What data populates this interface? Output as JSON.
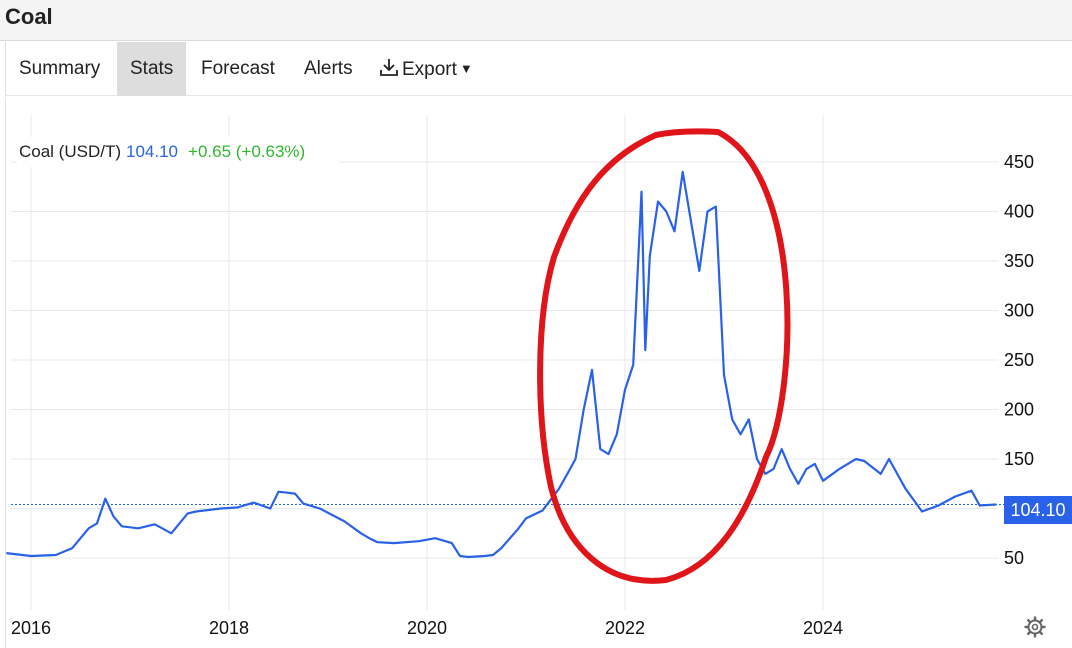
{
  "page": {
    "title": "Coal",
    "tabs": [
      {
        "label": "Summary"
      },
      {
        "label": "Stats"
      },
      {
        "label": "Forecast"
      },
      {
        "label": "Alerts"
      },
      {
        "label": "Export"
      }
    ]
  },
  "chart_data": {
    "type": "line",
    "legend": {
      "series_name": "Coal (USD/T)",
      "last_value": "104.10",
      "change": "+0.65 (+0.63%)"
    },
    "last_value_label": "104.10",
    "x_ticks": [
      "2016",
      "2018",
      "2020",
      "2022",
      "2024"
    ],
    "y_ticks": [
      50,
      100,
      150,
      200,
      250,
      300,
      350,
      400,
      450
    ],
    "y_tick_labels_shown": [
      "50",
      "150",
      "200",
      "250",
      "300",
      "350",
      "400",
      "450"
    ],
    "ylim": [
      0,
      500
    ],
    "grid": true,
    "line_color": "#2962e8",
    "current_line_color": "#2962e8",
    "change_color": "#2fb82f",
    "annotation_color": "#e0151a",
    "series": [
      {
        "name": "Coal (USD/T)",
        "x": [
          "2015-10",
          "2016-01",
          "2016-04",
          "2016-06",
          "2016-08",
          "2016-09",
          "2016-10",
          "2016-11",
          "2016-12",
          "2017-02",
          "2017-04",
          "2017-06",
          "2017-08",
          "2017-09",
          "2017-12",
          "2018-02",
          "2018-04",
          "2018-06",
          "2018-07",
          "2018-09",
          "2018-10",
          "2018-12",
          "2019-03",
          "2019-05",
          "2019-06",
          "2019-07",
          "2019-09",
          "2019-12",
          "2020-02",
          "2020-04",
          "2020-05",
          "2020-06",
          "2020-08",
          "2020-09",
          "2020-10",
          "2020-12",
          "2021-01",
          "2021-03",
          "2021-05",
          "2021-06",
          "2021-07",
          "2021-08",
          "2021-09",
          "2021-10",
          "2021-11",
          "2021-12",
          "2022-01",
          "2022-02",
          "2022-03",
          "2022-03-15",
          "2022-04",
          "2022-05",
          "2022-06",
          "2022-07",
          "2022-08",
          "2022-09",
          "2022-10",
          "2022-11",
          "2022-12",
          "2023-01",
          "2023-02",
          "2023-03",
          "2023-04",
          "2023-05",
          "2023-06",
          "2023-07",
          "2023-08",
          "2023-09",
          "2023-10",
          "2023-11",
          "2023-12",
          "2024-01",
          "2024-03",
          "2024-05",
          "2024-06",
          "2024-08",
          "2024-09",
          "2024-11",
          "2025-01",
          "2025-03",
          "2025-05",
          "2025-07",
          "2025-08",
          "2025-10"
        ],
        "y": [
          55,
          52,
          53,
          60,
          80,
          85,
          110,
          92,
          82,
          80,
          84,
          75,
          95,
          97,
          100,
          101,
          106,
          100,
          117,
          115,
          105,
          100,
          87,
          75,
          70,
          66,
          65,
          67,
          70,
          65,
          52,
          51,
          52,
          53,
          60,
          79,
          90,
          98,
          120,
          135,
          150,
          200,
          240,
          160,
          155,
          175,
          220,
          245,
          420,
          260,
          355,
          410,
          400,
          380,
          440,
          390,
          340,
          400,
          405,
          235,
          190,
          175,
          190,
          150,
          135,
          140,
          160,
          140,
          125,
          140,
          145,
          128,
          140,
          150,
          148,
          135,
          150,
          120,
          97,
          103,
          112,
          118,
          103,
          104
        ]
      }
    ]
  },
  "icons": {
    "export_icon": "download-icon",
    "settings_icon": "gear-icon"
  }
}
